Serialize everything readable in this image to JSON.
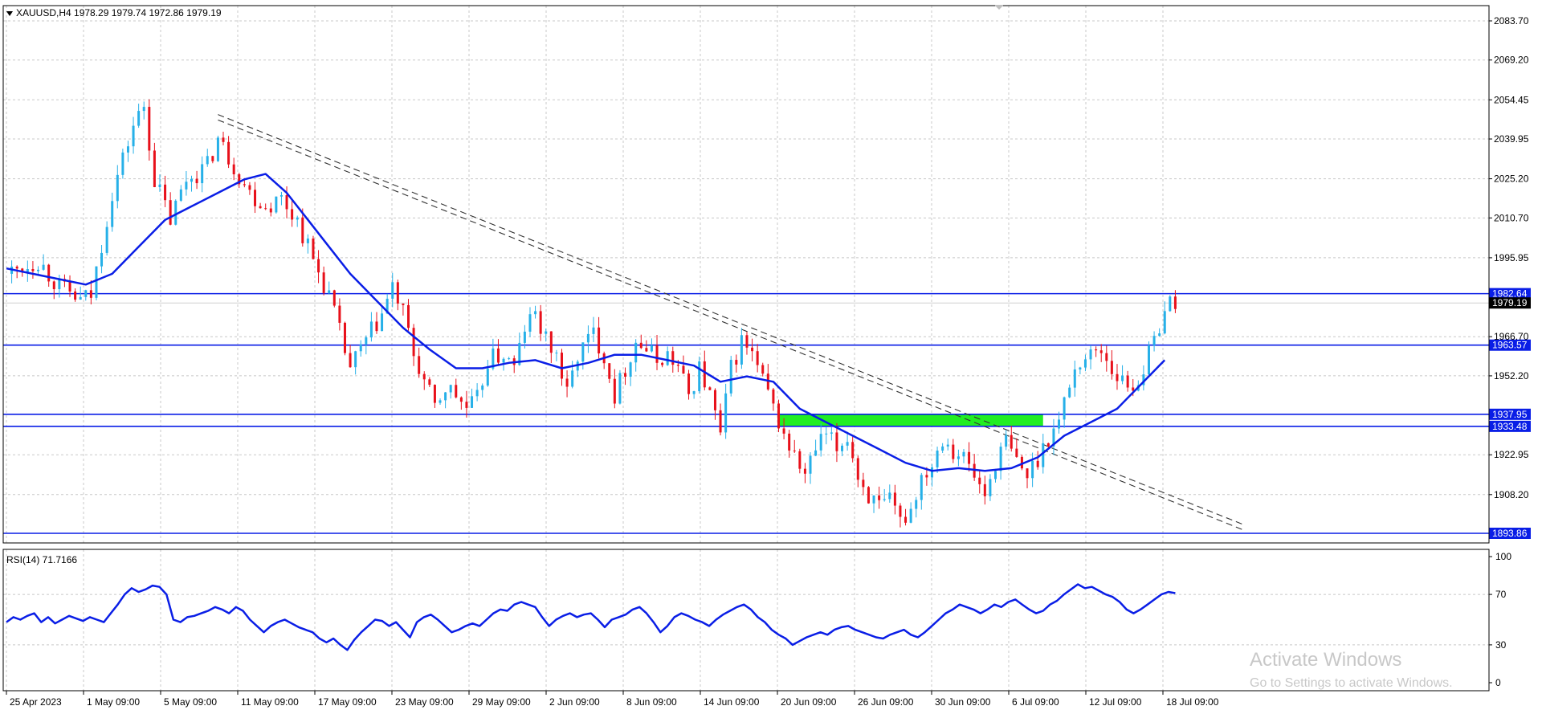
{
  "header": {
    "symbol": "XAUUSD,H4",
    "ohlc": "1978.29 1979.74 1972.86 1979.19"
  },
  "rsi_header": {
    "label": "RSI(14) 71.7166"
  },
  "watermark": {
    "title": "Activate Windows",
    "subtitle": "Go to Settings to activate Windows."
  },
  "colors": {
    "bull": "#26b0e8",
    "bear": "#e8101a",
    "ma": "#0a1ee6",
    "level": "#0a1ee6",
    "zone": "#22ee22",
    "grid": "#c8c8c8",
    "trend": "#333333",
    "price_tag": "#000000"
  },
  "chart_data": [
    {
      "type": "candlestick",
      "title": "XAUUSD,H4",
      "ylim": [
        1893.86,
        2083.7
      ],
      "y_ticks": [
        "2083.70",
        "2069.20",
        "2054.45",
        "2039.95",
        "2025.20",
        "2010.70",
        "1995.95",
        "1966.70",
        "1952.20",
        "1922.95",
        "1908.20"
      ],
      "x_ticks": [
        "25 Apr 2023",
        "1 May 09:00",
        "5 May 09:00",
        "11 May 09:00",
        "17 May 09:00",
        "23 May 09:00",
        "29 May 09:00",
        "2 Jun 09:00",
        "8 Jun 09:00",
        "14 Jun 09:00",
        "20 Jun 09:00",
        "26 Jun 09:00",
        "30 Jun 09:00",
        "6 Jul 09:00",
        "12 Jul 09:00",
        "18 Jul 09:00"
      ],
      "horizontal_levels": [
        "1982.64",
        "1963.57",
        "1937.95",
        "1933.48",
        "1893.86"
      ],
      "current_price": "1979.19",
      "supply_zone": [
        1933.48,
        1937.95
      ],
      "close_path": [
        [
          0,
          1990
        ],
        [
          6,
          1995
        ],
        [
          10,
          1985
        ],
        [
          14,
          1980
        ],
        [
          16,
          1982
        ],
        [
          20,
          2020
        ],
        [
          24,
          2045
        ],
        [
          26,
          2052
        ],
        [
          28,
          2025
        ],
        [
          31,
          2010
        ],
        [
          34,
          2025
        ],
        [
          38,
          2030
        ],
        [
          40,
          2040
        ],
        [
          43,
          2030
        ],
        [
          46,
          2020
        ],
        [
          49,
          2015
        ],
        [
          52,
          2018
        ],
        [
          55,
          2010
        ],
        [
          58,
          1995
        ],
        [
          61,
          1982
        ],
        [
          63,
          1968
        ],
        [
          65,
          1955
        ],
        [
          68,
          1965
        ],
        [
          71,
          1975
        ],
        [
          73,
          1985
        ],
        [
          75,
          1975
        ],
        [
          77,
          1960
        ],
        [
          79,
          1950
        ],
        [
          81,
          1940
        ],
        [
          83,
          1948
        ],
        [
          85,
          1945
        ],
        [
          87,
          1940
        ],
        [
          89,
          1943
        ],
        [
          91,
          1958
        ],
        [
          94,
          1960
        ],
        [
          96,
          1955
        ],
        [
          98,
          1970
        ],
        [
          100,
          1975
        ],
        [
          102,
          1965
        ],
        [
          104,
          1960
        ],
        [
          106,
          1945
        ],
        [
          108,
          1960
        ],
        [
          111,
          1968
        ],
        [
          113,
          1960
        ],
        [
          115,
          1945
        ],
        [
          117,
          1955
        ],
        [
          119,
          1965
        ],
        [
          121,
          1962
        ],
        [
          123,
          1958
        ],
        [
          125,
          1960
        ],
        [
          127,
          1955
        ],
        [
          129,
          1945
        ],
        [
          131,
          1955
        ],
        [
          133,
          1945
        ],
        [
          135,
          1930
        ],
        [
          137,
          1955
        ],
        [
          139,
          1965
        ],
        [
          141,
          1960
        ],
        [
          143,
          1950
        ],
        [
          145,
          1940
        ],
        [
          147,
          1930
        ],
        [
          149,
          1922
        ],
        [
          151,
          1915
        ],
        [
          153,
          1925
        ],
        [
          155,
          1930
        ],
        [
          157,
          1925
        ],
        [
          159,
          1930
        ],
        [
          161,
          1915
        ],
        [
          163,
          1908
        ],
        [
          165,
          1903
        ],
        [
          167,
          1905
        ],
        [
          169,
          1898
        ],
        [
          171,
          1903
        ],
        [
          173,
          1915
        ],
        [
          175,
          1920
        ],
        [
          177,
          1930
        ],
        [
          179,
          1925
        ],
        [
          181,
          1922
        ],
        [
          183,
          1915
        ],
        [
          185,
          1908
        ],
        [
          187,
          1920
        ],
        [
          189,
          1928
        ],
        [
          191,
          1920
        ],
        [
          193,
          1915
        ],
        [
          195,
          1922
        ],
        [
          197,
          1930
        ],
        [
          199,
          1935
        ],
        [
          201,
          1950
        ],
        [
          203,
          1958
        ],
        [
          205,
          1960
        ],
        [
          207,
          1962
        ],
        [
          209,
          1955
        ],
        [
          211,
          1950
        ],
        [
          213,
          1948
        ],
        [
          215,
          1955
        ],
        [
          217,
          1965
        ],
        [
          219,
          1978
        ],
        [
          221,
          1980
        ]
      ],
      "ma_path": [
        [
          0,
          1992
        ],
        [
          5,
          1990
        ],
        [
          10,
          1988
        ],
        [
          15,
          1986
        ],
        [
          20,
          1990
        ],
        [
          25,
          2000
        ],
        [
          30,
          2010
        ],
        [
          35,
          2015
        ],
        [
          40,
          2020
        ],
        [
          45,
          2025
        ],
        [
          49,
          2027
        ],
        [
          53,
          2020
        ],
        [
          57,
          2010
        ],
        [
          61,
          2000
        ],
        [
          65,
          1990
        ],
        [
          70,
          1980
        ],
        [
          75,
          1970
        ],
        [
          80,
          1962
        ],
        [
          85,
          1955
        ],
        [
          90,
          1955
        ],
        [
          95,
          1957
        ],
        [
          100,
          1958
        ],
        [
          105,
          1955
        ],
        [
          110,
          1957
        ],
        [
          115,
          1960
        ],
        [
          120,
          1960
        ],
        [
          125,
          1958
        ],
        [
          130,
          1956
        ],
        [
          135,
          1950
        ],
        [
          140,
          1952
        ],
        [
          145,
          1950
        ],
        [
          150,
          1940
        ],
        [
          155,
          1935
        ],
        [
          160,
          1930
        ],
        [
          165,
          1925
        ],
        [
          170,
          1920
        ],
        [
          175,
          1917
        ],
        [
          180,
          1918
        ],
        [
          185,
          1917
        ],
        [
          190,
          1918
        ],
        [
          195,
          1922
        ],
        [
          200,
          1930
        ],
        [
          205,
          1935
        ],
        [
          210,
          1940
        ],
        [
          215,
          1950
        ],
        [
          219,
          1958
        ]
      ],
      "trendlines": [
        {
          "from": [
            40,
            2049
          ],
          "to": [
            234,
            1897
          ]
        },
        {
          "from": [
            40,
            2047
          ],
          "to": [
            234,
            1895
          ]
        }
      ]
    },
    {
      "type": "line",
      "title": "RSI(14) 71.7166",
      "ylim": [
        0,
        100
      ],
      "y_ticks": [
        "100",
        "70",
        "30",
        "0"
      ],
      "series": [
        {
          "values": [
            48,
            52,
            50,
            53,
            55,
            48,
            52,
            47,
            50,
            53,
            51,
            49,
            52,
            50,
            48,
            55,
            62,
            70,
            75,
            72,
            74,
            77,
            76,
            70,
            50,
            48,
            52,
            53,
            55,
            57,
            60,
            58,
            55,
            60,
            57,
            50,
            45,
            40,
            45,
            48,
            50,
            47,
            44,
            42,
            40,
            35,
            32,
            35,
            30,
            26,
            34,
            40,
            45,
            50,
            49,
            45,
            48,
            42,
            36,
            48,
            52,
            54,
            50,
            45,
            40,
            42,
            45,
            47,
            45,
            50,
            55,
            58,
            57,
            62,
            64,
            62,
            60,
            52,
            45,
            50,
            53,
            55,
            52,
            54,
            55,
            50,
            44,
            50,
            52,
            54,
            58,
            60,
            55,
            48,
            40,
            45,
            52,
            55,
            53,
            50,
            48,
            45,
            50,
            54,
            57,
            60,
            62,
            58,
            52,
            48,
            42,
            38,
            35,
            30,
            33,
            36,
            38,
            40,
            38,
            42,
            44,
            45,
            42,
            40,
            38,
            36,
            35,
            38,
            40,
            42,
            38,
            36,
            40,
            45,
            50,
            55,
            58,
            62,
            60,
            58,
            55,
            58,
            62,
            60,
            64,
            66,
            62,
            58,
            55,
            57,
            62,
            65,
            70,
            74,
            78,
            75,
            76,
            73,
            70,
            68,
            64,
            58,
            55,
            58,
            62,
            66,
            70,
            72,
            71
          ]
        }
      ]
    }
  ]
}
